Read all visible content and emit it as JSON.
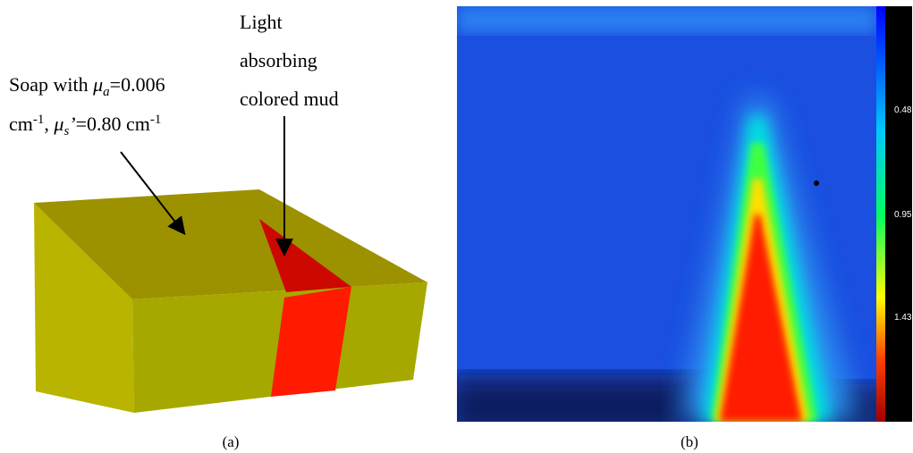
{
  "panel_a": {
    "soap_label": {
      "line1": [
        "Soap with ",
        "μ",
        "a",
        "=0.006"
      ],
      "line2": [
        "cm",
        "-1",
        ", ",
        "μ",
        "s",
        "’",
        "=0.80 cm",
        "-1"
      ]
    },
    "mud_label": [
      "Light",
      "absorbing",
      "colored mud"
    ],
    "caption": "(a)"
  },
  "panel_b": {
    "colorbar_ticks": [
      "0.48",
      "0.95",
      "1.43"
    ],
    "caption": "(b)"
  }
}
